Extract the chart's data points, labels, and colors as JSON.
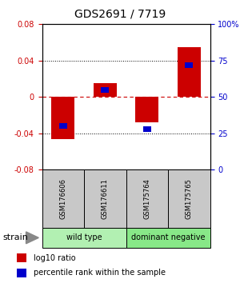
{
  "title": "GDS2691 / 7719",
  "samples": [
    "GSM176606",
    "GSM176611",
    "GSM175764",
    "GSM175765"
  ],
  "log10_ratio": [
    -0.046,
    0.015,
    -0.028,
    0.055
  ],
  "percentile_rank": [
    0.3,
    0.55,
    0.28,
    0.72
  ],
  "ylim": [
    -0.08,
    0.08
  ],
  "yticks_left": [
    -0.08,
    -0.04,
    0,
    0.04,
    0.08
  ],
  "yticks_right": [
    0,
    25,
    50,
    75,
    100
  ],
  "groups": [
    {
      "label": "wild type",
      "samples": [
        0,
        1
      ],
      "color": "#b2f0b2"
    },
    {
      "label": "dominant negative",
      "samples": [
        2,
        3
      ],
      "color": "#88e888"
    }
  ],
  "bar_color_red": "#cc0000",
  "bar_color_blue": "#0000cc",
  "bar_width": 0.55,
  "zero_line_color": "#cc0000",
  "bg_color": "#ffffff",
  "label_area_color": "#c8c8c8",
  "title_fontsize": 10,
  "tick_fontsize": 7,
  "sample_fontsize": 6,
  "group_fontsize": 7,
  "legend_fontsize": 7,
  "strain_fontsize": 8
}
